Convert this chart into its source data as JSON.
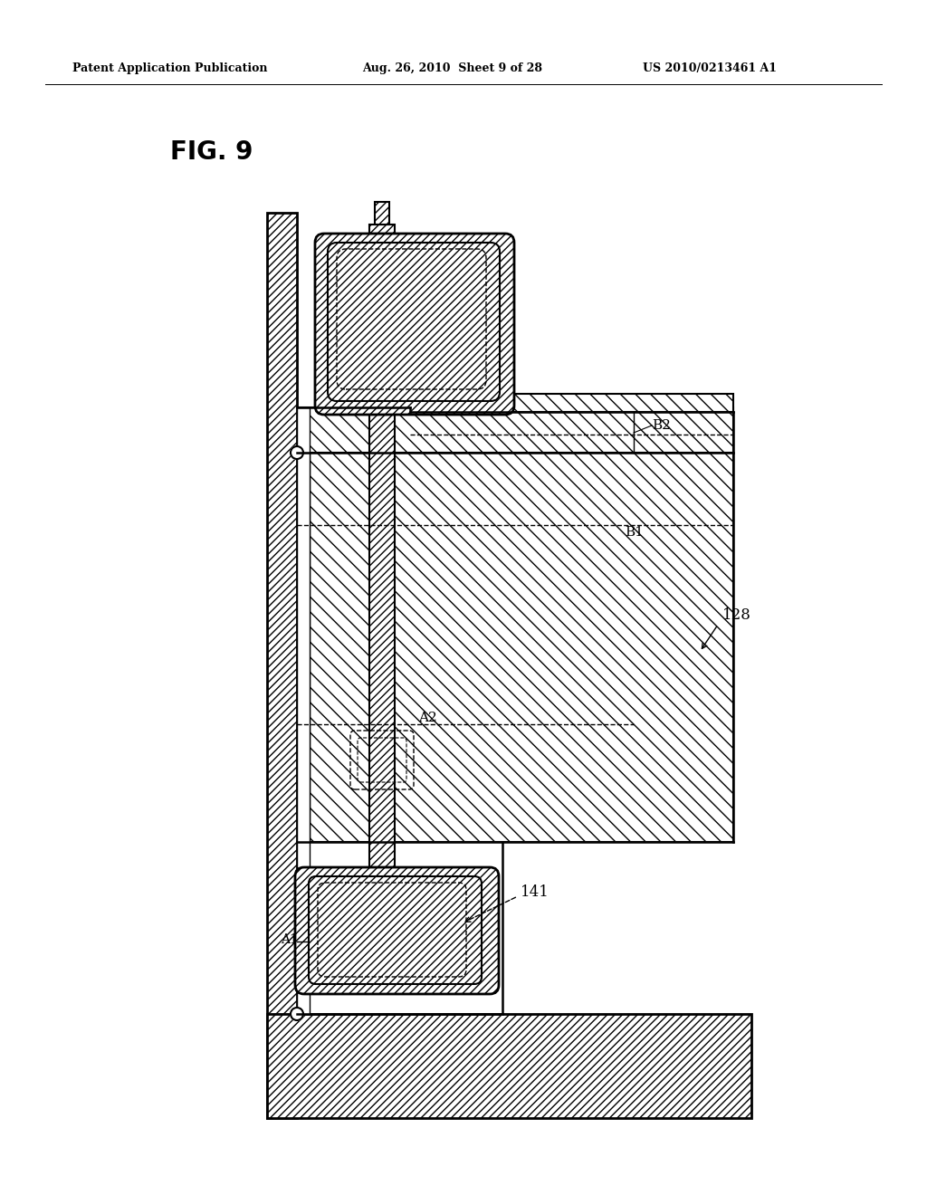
{
  "header_left": "Patent Application Publication",
  "header_mid": "Aug. 26, 2010  Sheet 9 of 28",
  "header_right": "US 2010/0213461 A1",
  "fig_label": "FIG. 9",
  "label_128": "128",
  "label_141": "141",
  "label_B1": "B1",
  "label_B2": "B2",
  "label_A1": "A1",
  "label_A2": "A2",
  "bg_color": "#ffffff",
  "line_color": "#000000",
  "figure_size": [
    10.24,
    13.2
  ],
  "dpi": 100
}
